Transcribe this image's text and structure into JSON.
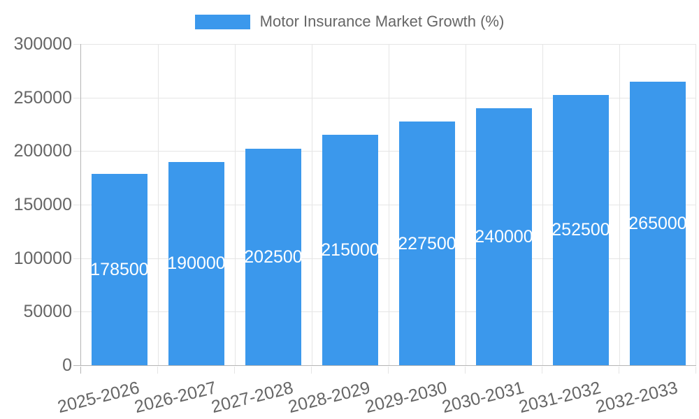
{
  "legend": {
    "label": "Motor Insurance Market Growth (%)"
  },
  "chart_data": {
    "type": "bar",
    "title": "Motor Insurance Market Growth (%)",
    "categories": [
      "2025-2026",
      "2026-2027",
      "2027-2028",
      "2028-2029",
      "2029-2030",
      "2030-2031",
      "2031-2032",
      "2032-2033"
    ],
    "values": [
      178500,
      190000,
      202500,
      215000,
      227500,
      240000,
      252500,
      265000
    ],
    "value_labels": [
      "178500",
      "190000",
      "202500",
      "215000",
      "227500",
      "240000",
      "252500",
      "265000"
    ],
    "xlabel": "",
    "ylabel": "",
    "ylim": [
      0,
      300000
    ],
    "y_ticks": [
      0,
      50000,
      100000,
      150000,
      200000,
      250000,
      300000
    ],
    "grid": true,
    "legend_position": "top",
    "bar_color": "#3b98ec",
    "value_label_color": "#ffffff",
    "axis_text_color": "#666666",
    "grid_color": "#e5e5e5",
    "axis_line_color": "#b5b5b5"
  }
}
